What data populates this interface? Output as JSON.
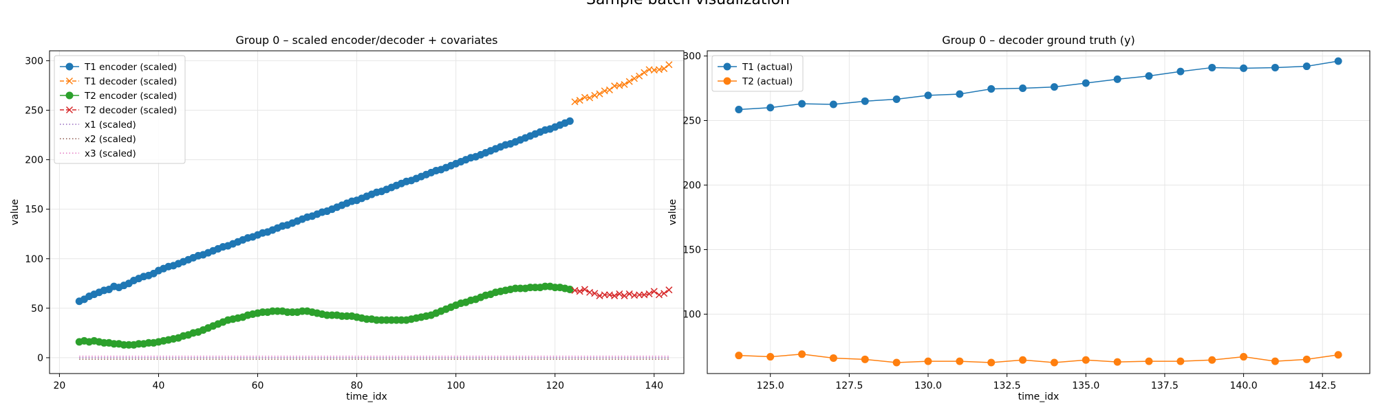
{
  "figure": {
    "suptitle": "Sample batch visualization"
  },
  "colors": {
    "blue": "#1f77b4",
    "orange": "#ff7f0e",
    "green": "#2ca02c",
    "red": "#d62728",
    "purple": "#9467bd",
    "brown": "#8c564b",
    "pink": "#e377c2"
  },
  "chart_data": [
    {
      "type": "line",
      "title": "Group 0 – scaled encoder/decoder + covariates",
      "xlabel": "time_idx",
      "ylabel": "value",
      "xlim": [
        18,
        146
      ],
      "ylim": [
        -16,
        310
      ],
      "xticks": [
        "20",
        "40",
        "60",
        "80",
        "100",
        "120",
        "140"
      ],
      "yticks": [
        "0",
        "50",
        "100",
        "150",
        "200",
        "250",
        "300"
      ],
      "grid": true,
      "legend_position": "upper-left",
      "series": [
        {
          "name": "T1 encoder (scaled)",
          "color": "#1f77b4",
          "marker": "o",
          "style": "solid",
          "x_start": 24,
          "x_step": 1,
          "values": [
            57,
            59,
            62,
            64,
            66,
            68,
            69,
            72,
            71,
            73,
            75,
            78,
            80,
            82,
            83,
            85,
            88,
            90,
            92,
            93,
            95,
            97,
            99,
            101,
            103,
            104,
            106,
            108,
            110,
            112,
            113,
            115,
            117,
            119,
            121,
            122,
            124,
            126,
            127,
            129,
            131,
            133,
            134,
            136,
            138,
            140,
            142,
            143,
            145,
            147,
            148,
            150,
            152,
            154,
            156,
            158,
            159,
            161,
            163,
            165,
            167,
            168,
            170,
            172,
            174,
            176,
            178,
            179,
            181,
            183,
            185,
            187,
            189,
            190,
            192,
            194,
            196,
            198,
            200,
            202,
            203,
            205,
            207,
            209,
            211,
            213,
            215,
            216,
            218,
            220,
            222,
            224,
            226,
            228,
            230,
            231,
            233,
            235,
            237,
            239
          ]
        },
        {
          "name": "T1 decoder (scaled)",
          "color": "#ff7f0e",
          "marker": "x",
          "style": "dashed",
          "x_start": 124,
          "x_step": 1,
          "values": [
            258.5,
            260,
            263,
            262.5,
            265,
            266.5,
            269.5,
            270.5,
            274.5,
            275,
            276,
            279,
            282,
            284.5,
            288,
            291,
            290.5,
            291,
            292,
            296
          ]
        },
        {
          "name": "T2 encoder (scaled)",
          "color": "#2ca02c",
          "marker": "o",
          "style": "solid",
          "x_start": 24,
          "x_step": 1,
          "values": [
            16,
            17,
            16,
            17,
            16,
            15,
            15,
            14,
            14,
            13,
            13,
            13,
            14,
            14,
            15,
            15,
            16,
            17,
            18,
            19,
            20,
            22,
            23,
            25,
            26,
            28,
            30,
            32,
            34,
            36,
            38,
            39,
            40,
            41,
            43,
            44,
            45,
            46,
            46,
            47,
            47,
            47,
            46,
            46,
            46,
            47,
            47,
            46,
            45,
            44,
            43,
            43,
            43,
            42,
            42,
            42,
            41,
            40,
            39,
            39,
            38,
            38,
            38,
            38,
            38,
            38,
            38,
            39,
            40,
            41,
            42,
            43,
            45,
            47,
            49,
            51,
            53,
            55,
            56,
            58,
            59,
            61,
            63,
            64,
            66,
            67,
            68,
            69,
            70,
            70,
            70,
            71,
            71,
            71,
            72,
            72,
            71,
            71,
            70,
            69
          ]
        },
        {
          "name": "T2 decoder (scaled)",
          "color": "#d62728",
          "marker": "x",
          "style": "dashed",
          "x_start": 124,
          "x_step": 1,
          "values": [
            68,
            67,
            69,
            66,
            65,
            62.5,
            63.5,
            63.5,
            62.5,
            64.5,
            62.5,
            64.5,
            63,
            63.5,
            63.5,
            64.5,
            67,
            63.5,
            65,
            68.5
          ]
        },
        {
          "name": "x1 (scaled)",
          "color": "#9467bd",
          "marker": "",
          "style": "dotted",
          "x_start": 24,
          "x_step": 1,
          "constant": 0
        },
        {
          "name": "x2 (scaled)",
          "color": "#8c564b",
          "marker": "",
          "style": "dotted",
          "x_start": 24,
          "x_step": 1,
          "constant": -1.5
        },
        {
          "name": "x3 (scaled)",
          "color": "#e377c2",
          "marker": "",
          "style": "dotted",
          "x_start": 24,
          "x_step": 1,
          "constant": 1.5
        }
      ]
    },
    {
      "type": "line",
      "title": "Group 0 – decoder ground truth (y)",
      "xlabel": "time_idx",
      "ylabel": "value",
      "xlim": [
        123,
        144
      ],
      "ylim": [
        54,
        304
      ],
      "xticks": [
        "125.0",
        "127.5",
        "130.0",
        "132.5",
        "135.0",
        "137.5",
        "140.0",
        "142.5"
      ],
      "yticks": [
        "100",
        "150",
        "200",
        "250",
        "300"
      ],
      "grid": true,
      "legend_position": "upper-left",
      "series": [
        {
          "name": "T1 (actual)",
          "color": "#1f77b4",
          "marker": "o",
          "style": "solid",
          "x_start": 124,
          "x_step": 1,
          "values": [
            258.5,
            260,
            263,
            262.5,
            265,
            266.5,
            269.5,
            270.5,
            274.5,
            275,
            276,
            279,
            282,
            284.5,
            288,
            291,
            290.5,
            291,
            292,
            296
          ]
        },
        {
          "name": "T2 (actual)",
          "color": "#ff7f0e",
          "marker": "o",
          "style": "solid",
          "x_start": 124,
          "x_step": 1,
          "values": [
            68,
            67,
            69,
            66,
            65,
            62.5,
            63.5,
            63.5,
            62.5,
            64.5,
            62.5,
            64.5,
            63,
            63.5,
            63.5,
            64.5,
            67,
            63.5,
            65,
            68.5
          ]
        }
      ]
    }
  ]
}
